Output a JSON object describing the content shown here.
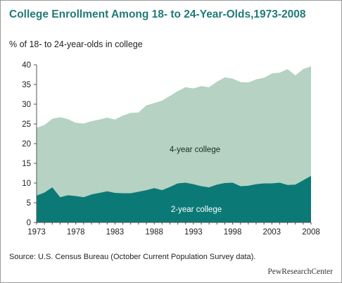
{
  "title": "College Enrollment Among 18- to 24-Year-Olds,1973-2008",
  "subtitle": "% of 18- to 24-year-olds in college",
  "source": "Source: U.S. Census Bureau (October Current Population Survey data).",
  "credit": "PewResearchCenter",
  "colors": {
    "title": "#1f7a78",
    "four_year": "#b5d2c2",
    "two_year": "#0b7a76"
  },
  "chart_data": {
    "type": "area",
    "stacked": false,
    "x": [
      1973,
      1974,
      1975,
      1976,
      1977,
      1978,
      1979,
      1980,
      1981,
      1982,
      1983,
      1984,
      1985,
      1986,
      1987,
      1988,
      1989,
      1990,
      1991,
      1992,
      1993,
      1994,
      1995,
      1996,
      1997,
      1998,
      1999,
      2000,
      2001,
      2002,
      2003,
      2004,
      2005,
      2006,
      2007,
      2008
    ],
    "series": [
      {
        "name": "4-year college",
        "values": [
          24.0,
          24.7,
          26.3,
          26.7,
          26.2,
          25.3,
          25.1,
          25.7,
          26.1,
          26.6,
          26.1,
          27.1,
          27.8,
          27.9,
          29.7,
          30.3,
          30.9,
          32.1,
          33.3,
          34.3,
          34.0,
          34.6,
          34.3,
          35.7,
          36.8,
          36.5,
          35.6,
          35.5,
          36.3,
          36.7,
          37.8,
          38.0,
          38.9,
          37.3,
          38.9,
          39.6
        ],
        "color": "#b5d2c2"
      },
      {
        "name": "2-year college",
        "values": [
          6.8,
          7.6,
          8.9,
          6.4,
          6.9,
          6.7,
          6.4,
          7.1,
          7.5,
          7.9,
          7.5,
          7.4,
          7.4,
          7.8,
          8.2,
          8.7,
          8.2,
          9.0,
          9.9,
          10.1,
          9.7,
          9.2,
          8.9,
          9.6,
          10.0,
          10.1,
          9.2,
          9.3,
          9.7,
          9.9,
          9.9,
          10.1,
          9.5,
          9.6,
          10.7,
          11.8
        ],
        "color": "#0b7a76"
      }
    ],
    "ylim": [
      0,
      40
    ],
    "yticks": [
      0,
      5,
      10,
      15,
      20,
      25,
      30,
      35,
      40
    ],
    "xticks": [
      1973,
      1978,
      1983,
      1988,
      1993,
      1998,
      2003,
      2008
    ],
    "xlim": [
      1973,
      2008
    ]
  }
}
